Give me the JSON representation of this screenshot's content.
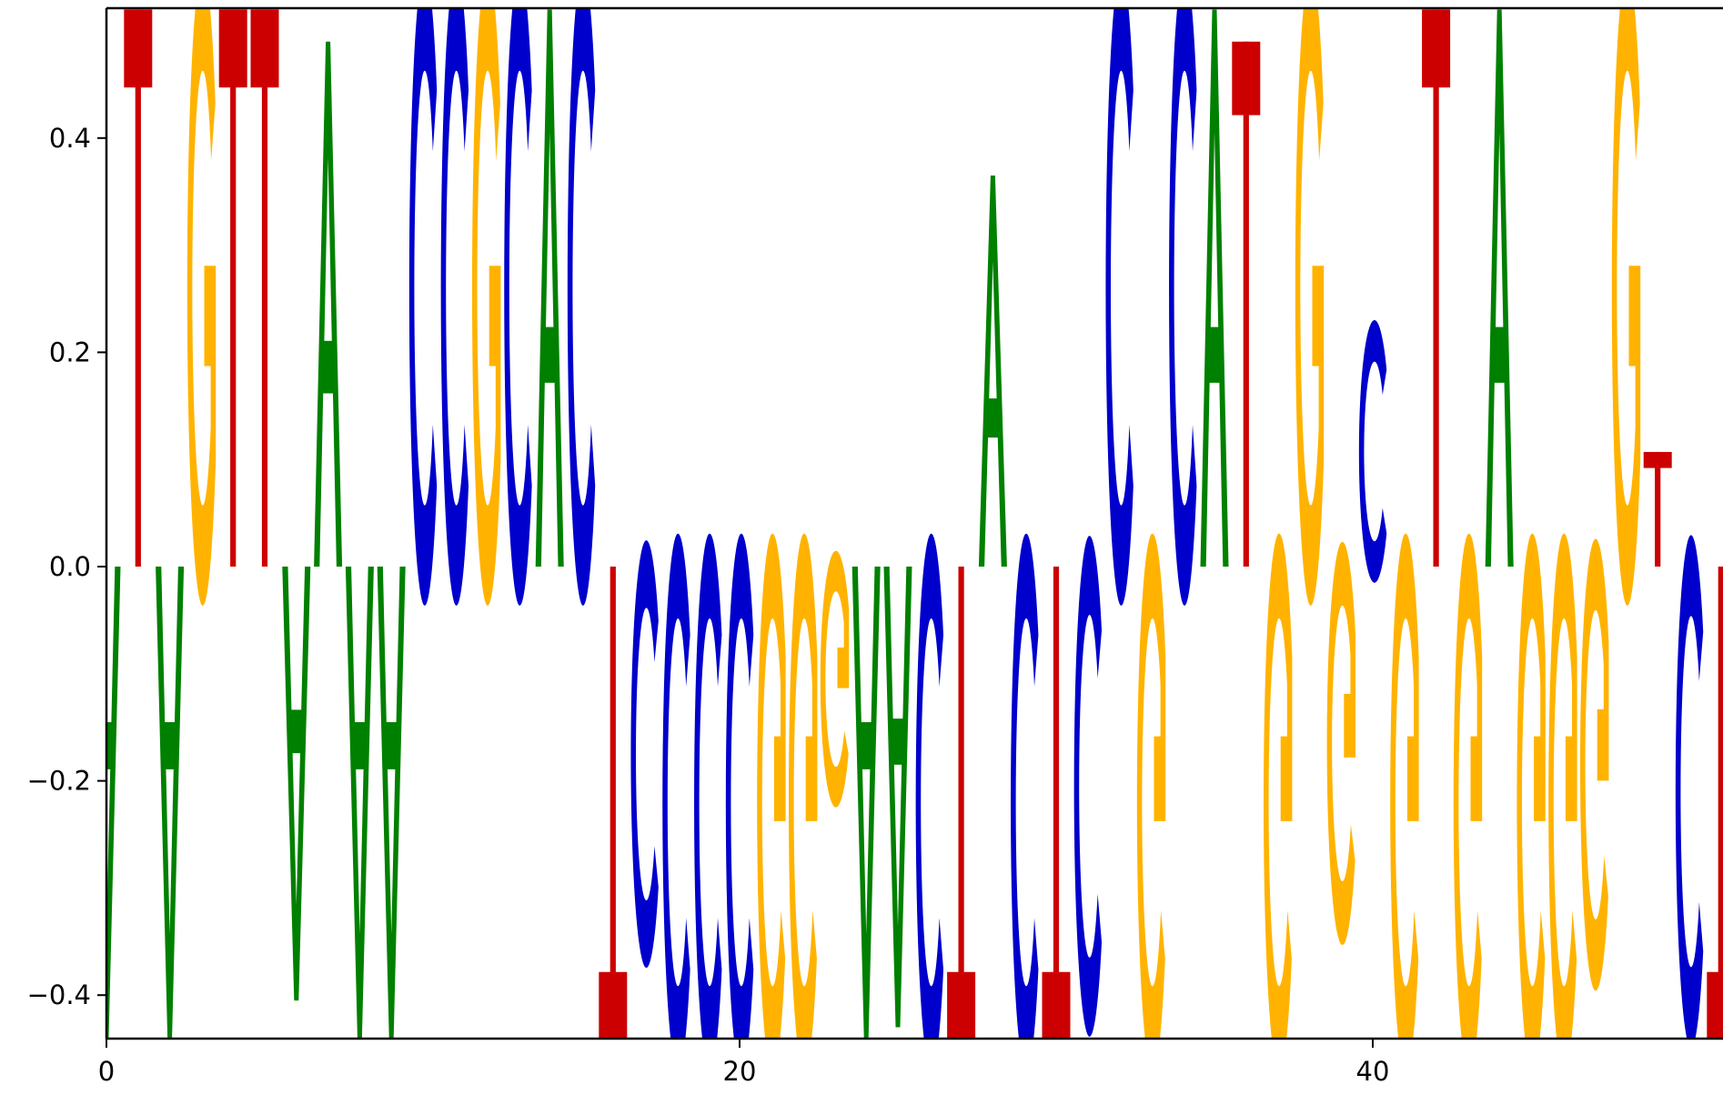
{
  "chart_data": {
    "type": "sequence-logo",
    "title": "",
    "xlabel": "",
    "ylabel": "",
    "xlim": [
      0,
      51
    ],
    "ylim": [
      -0.44,
      0.52
    ],
    "x_ticks": [
      0,
      20,
      40
    ],
    "x_tick_labels": [
      "0",
      "20",
      "40"
    ],
    "y_ticks": [
      -0.4,
      -0.2,
      0.0,
      0.2,
      0.4
    ],
    "y_tick_labels": [
      "−0.4",
      "−0.2",
      "0.0",
      "0.2",
      "0.4"
    ],
    "grid": false,
    "colors": {
      "A": "#008000",
      "C": "#0000cc",
      "G": "#ffb300",
      "T": "#cc0000"
    },
    "positions": [
      {
        "x": 0,
        "letter": "A",
        "value": -0.44
      },
      {
        "x": 1,
        "letter": "T",
        "value": 0.52
      },
      {
        "x": 2,
        "letter": "A",
        "value": -0.44
      },
      {
        "x": 3,
        "letter": "G",
        "value": 0.52
      },
      {
        "x": 4,
        "letter": "T",
        "value": 0.52
      },
      {
        "x": 5,
        "letter": "T",
        "value": 0.52
      },
      {
        "x": 6,
        "letter": "A",
        "value": -0.405
      },
      {
        "x": 7,
        "letter": "A",
        "value": 0.49
      },
      {
        "x": 8,
        "letter": "A",
        "value": -0.44
      },
      {
        "x": 9,
        "letter": "A",
        "value": -0.44
      },
      {
        "x": 10,
        "letter": "C",
        "value": 0.52
      },
      {
        "x": 11,
        "letter": "C",
        "value": 0.52
      },
      {
        "x": 12,
        "letter": "G",
        "value": 0.52
      },
      {
        "x": 13,
        "letter": "C",
        "value": 0.52
      },
      {
        "x": 14,
        "letter": "A",
        "value": 0.52
      },
      {
        "x": 15,
        "letter": "C",
        "value": 0.52
      },
      {
        "x": 16,
        "letter": "T",
        "value": -0.44
      },
      {
        "x": 17,
        "letter": "C",
        "value": -0.35
      },
      {
        "x": 18,
        "letter": "C",
        "value": -0.44
      },
      {
        "x": 19,
        "letter": "C",
        "value": -0.44
      },
      {
        "x": 20,
        "letter": "C",
        "value": -0.44
      },
      {
        "x": 21,
        "letter": "G",
        "value": -0.44
      },
      {
        "x": 22,
        "letter": "G",
        "value": -0.44
      },
      {
        "x": 23,
        "letter": "G",
        "value": -0.21
      },
      {
        "x": 24,
        "letter": "A",
        "value": -0.44
      },
      {
        "x": 25,
        "letter": "A",
        "value": -0.43
      },
      {
        "x": 26,
        "letter": "C",
        "value": -0.44
      },
      {
        "x": 27,
        "letter": "T",
        "value": -0.44
      },
      {
        "x": 28,
        "letter": "A",
        "value": 0.365
      },
      {
        "x": 29,
        "letter": "C",
        "value": -0.44
      },
      {
        "x": 30,
        "letter": "T",
        "value": -0.44
      },
      {
        "x": 31,
        "letter": "C",
        "value": -0.41
      },
      {
        "x": 32,
        "letter": "C",
        "value": 0.52
      },
      {
        "x": 33,
        "letter": "G",
        "value": -0.44
      },
      {
        "x": 34,
        "letter": "C",
        "value": 0.52
      },
      {
        "x": 35,
        "letter": "A",
        "value": 0.52
      },
      {
        "x": 36,
        "letter": "T",
        "value": 0.49
      },
      {
        "x": 37,
        "letter": "G",
        "value": -0.44
      },
      {
        "x": 38,
        "letter": "G",
        "value": 0.52
      },
      {
        "x": 39,
        "letter": "G",
        "value": -0.33
      },
      {
        "x": 40,
        "letter": "C",
        "value": 0.215
      },
      {
        "x": 41,
        "letter": "G",
        "value": -0.44
      },
      {
        "x": 42,
        "letter": "T",
        "value": 0.52
      },
      {
        "x": 43,
        "letter": "G",
        "value": -0.44
      },
      {
        "x": 44,
        "letter": "A",
        "value": 0.52
      },
      {
        "x": 45,
        "letter": "G",
        "value": -0.44
      },
      {
        "x": 46,
        "letter": "G",
        "value": -0.44
      },
      {
        "x": 47,
        "letter": "G",
        "value": -0.37
      },
      {
        "x": 48,
        "letter": "G",
        "value": 0.52
      },
      {
        "x": 49,
        "letter": "T",
        "value": 0.107
      },
      {
        "x": 50,
        "letter": "C",
        "value": -0.42
      },
      {
        "x": 51,
        "letter": "T",
        "value": -0.44
      }
    ]
  }
}
